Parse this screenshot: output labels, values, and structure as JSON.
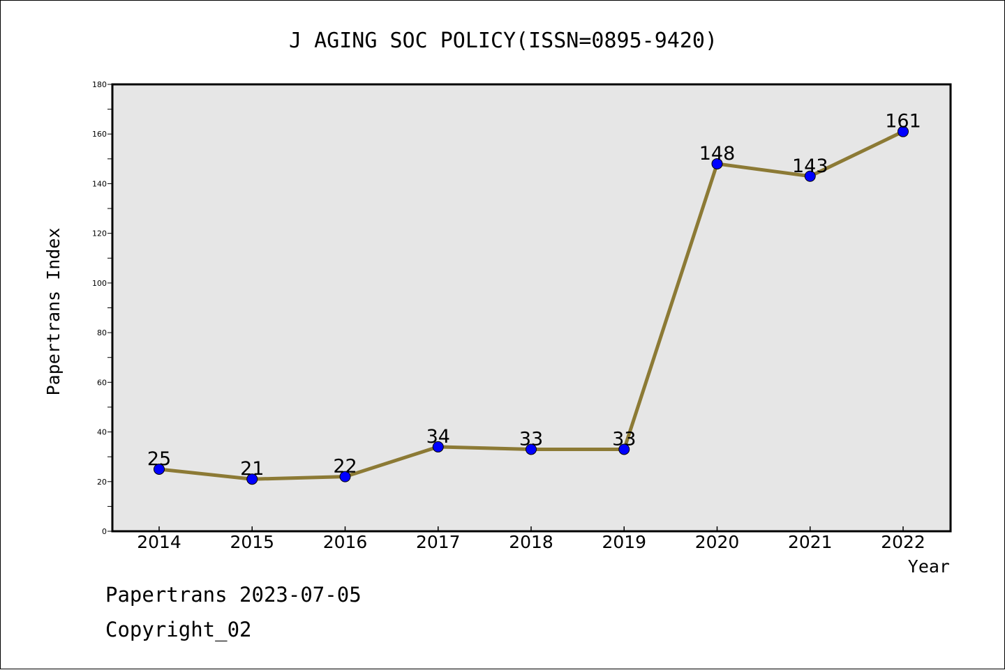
{
  "chart_data": {
    "type": "line",
    "title": "J AGING SOC POLICY(ISSN=0895-9420)",
    "xlabel": "Year",
    "ylabel": "Papertrans Index",
    "categories": [
      "2014",
      "2015",
      "2016",
      "2017",
      "2018",
      "2019",
      "2020",
      "2021",
      "2022"
    ],
    "series": [
      {
        "values": [
          25,
          21,
          22,
          34,
          33,
          33,
          148,
          143,
          161
        ]
      }
    ],
    "data_labels": [
      "25",
      "21",
      "22",
      "34",
      "33",
      "33",
      "148",
      "143",
      "161"
    ],
    "ylim": [
      0,
      180
    ],
    "yticks": [
      "0",
      "20",
      "40",
      "60",
      "80",
      "100",
      "120",
      "140",
      "160",
      "180"
    ],
    "grid": false,
    "legend": "none",
    "colors": {
      "line": "#8c7a35",
      "marker": "#0000ff",
      "plot_background": "#e6e6e6"
    }
  },
  "footer": {
    "line1": "Papertrans 2023-07-05",
    "line2": "Copyright_02"
  }
}
